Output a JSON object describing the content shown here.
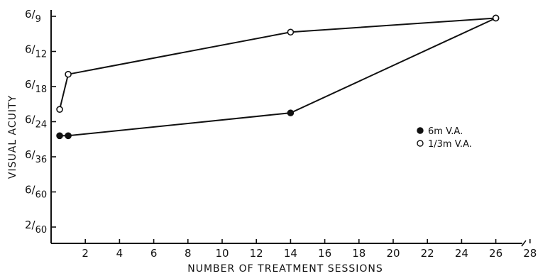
{
  "chart_data": {
    "type": "line",
    "title": "",
    "xlabel": "NUMBER OF TREATMENT SESSIONS",
    "ylabel": "VISUAL ACUITY",
    "x_ticks": [
      2,
      4,
      6,
      8,
      10,
      12,
      14,
      16,
      18,
      20,
      22,
      24,
      26,
      28
    ],
    "xlim": [
      0,
      28
    ],
    "y_levels": [
      "2/60",
      "6/60",
      "6/36",
      "6/24",
      "6/18",
      "6/12",
      "6/9"
    ],
    "y_tick_labels": [
      {
        "num": "2",
        "den": "60"
      },
      {
        "num": "6",
        "den": "60"
      },
      {
        "num": "6",
        "den": "36"
      },
      {
        "num": "6",
        "den": "24"
      },
      {
        "num": "6",
        "den": "18"
      },
      {
        "num": "6",
        "den": "12"
      },
      {
        "num": "6",
        "den": "9"
      }
    ],
    "grid": false,
    "legend_position": "right",
    "series": [
      {
        "name": "6m V.A.",
        "marker": "filled",
        "x": [
          0.5,
          1,
          14,
          26
        ],
        "y": [
          "6/24–6/36",
          "6/24–6/36",
          "6/18–6/24",
          "6/9"
        ]
      },
      {
        "name": "1/3m V.A.",
        "marker": "open",
        "x": [
          0.5,
          1,
          14,
          26
        ],
        "y": [
          "6/24",
          "6/12–6/18",
          "6/9–6/12",
          "6/9"
        ]
      }
    ],
    "y_values_numeric_note": "",
    "y_index": {
      "series_6m": [
        2.6,
        2.6,
        3.25,
        5.95
      ],
      "series_third_m": [
        3.35,
        4.35,
        5.55,
        5.95
      ]
    }
  }
}
